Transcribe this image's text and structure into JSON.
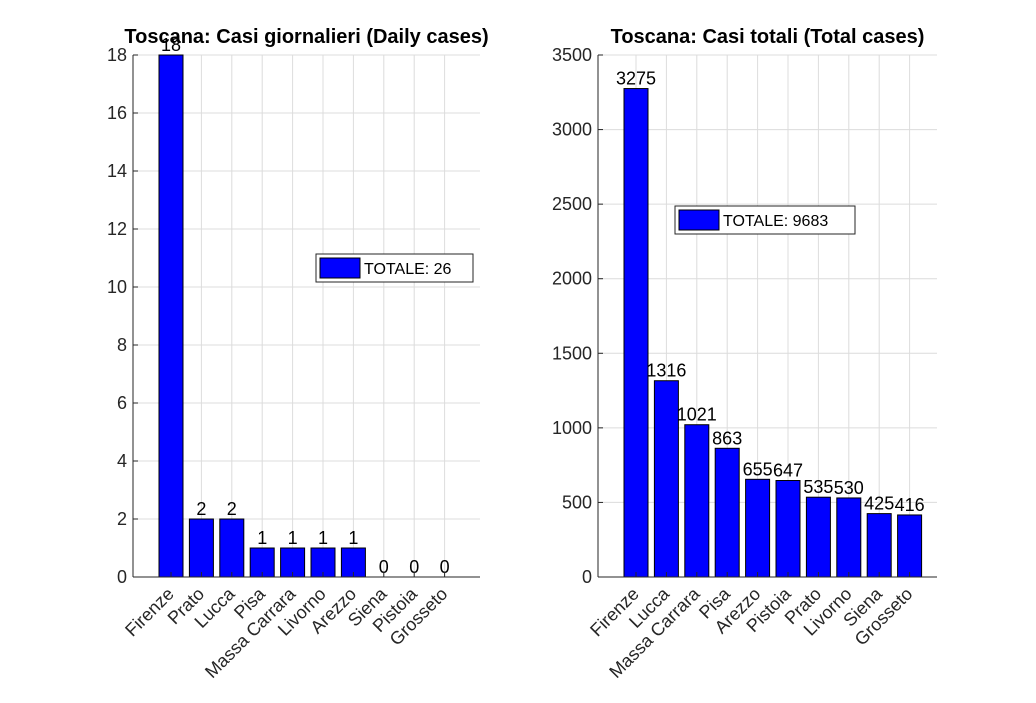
{
  "colors": {
    "bar": "#0000ff",
    "bar_edge": "#000000",
    "grid": "#dcdcdc",
    "axis": "#262626"
  },
  "chart_data": [
    {
      "type": "bar",
      "title": "Toscana: Casi giornalieri (Daily cases)",
      "categories": [
        "Firenze",
        "Prato",
        "Lucca",
        "Pisa",
        "Massa Carrara",
        "Livorno",
        "Arezzo",
        "Siena",
        "Pistoia",
        "Grosseto"
      ],
      "values": [
        18,
        2,
        2,
        1,
        1,
        1,
        1,
        0,
        0,
        0
      ],
      "ylim": [
        0,
        18
      ],
      "yticks": [
        0,
        2,
        4,
        6,
        8,
        10,
        12,
        14,
        16,
        18
      ],
      "legend": "TOTALE: 26",
      "legend_position": "right",
      "grid": true
    },
    {
      "type": "bar",
      "title": "Toscana: Casi totali (Total cases)",
      "categories": [
        "Firenze",
        "Lucca",
        "Massa Carrara",
        "Pisa",
        "Arezzo",
        "Pistoia",
        "Prato",
        "Livorno",
        "Siena",
        "Grosseto"
      ],
      "values": [
        3275,
        1316,
        1021,
        863,
        655,
        647,
        535,
        530,
        425,
        416
      ],
      "ylim": [
        0,
        3500
      ],
      "yticks": [
        0,
        500,
        1000,
        1500,
        2000,
        2500,
        3000,
        3500
      ],
      "legend": "TOTALE: 9683",
      "legend_position": "upper-middle",
      "grid": true
    }
  ]
}
